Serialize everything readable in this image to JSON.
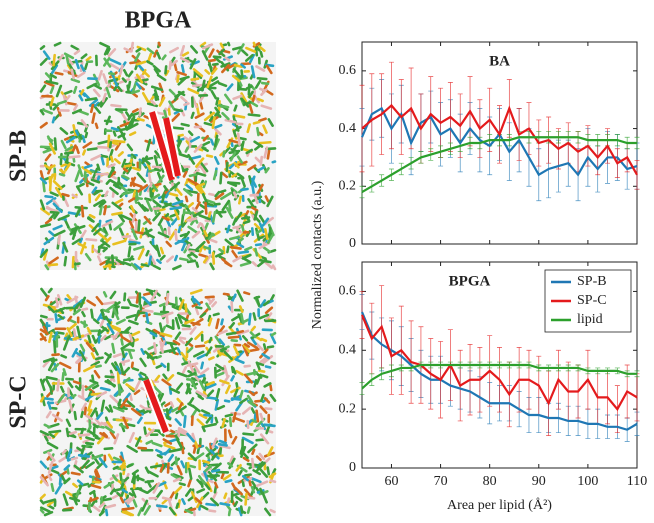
{
  "snapshots": {
    "title": "BPGA",
    "rows": [
      "SP-B",
      "SP-C"
    ]
  },
  "chart_data": [
    {
      "type": "line",
      "title": "BA",
      "x": [
        54,
        56,
        58,
        60,
        62,
        64,
        66,
        68,
        70,
        72,
        74,
        76,
        78,
        80,
        82,
        84,
        86,
        88,
        90,
        92,
        94,
        96,
        98,
        100,
        102,
        104,
        106,
        108,
        110
      ],
      "series": [
        {
          "color": "#1f77b4",
          "values": [
            0.37,
            0.45,
            0.47,
            0.4,
            0.45,
            0.35,
            0.42,
            0.44,
            0.38,
            0.4,
            0.35,
            0.4,
            0.36,
            0.34,
            0.38,
            0.32,
            0.36,
            0.3,
            0.24,
            0.26,
            0.27,
            0.28,
            0.24,
            0.3,
            0.26,
            0.3,
            0.3,
            0.26,
            0.27
          ],
          "errors": [
            0.1,
            0.09,
            0.1,
            0.12,
            0.1,
            0.11,
            0.1,
            0.09,
            0.11,
            0.1,
            0.1,
            0.09,
            0.11,
            0.1,
            0.09,
            0.1,
            0.11,
            0.1,
            0.09,
            0.1,
            0.09,
            0.08,
            0.09,
            0.1,
            0.08,
            0.09,
            0.08,
            0.07,
            0.08
          ]
        },
        {
          "color": "#e41a1c",
          "values": [
            0.4,
            0.43,
            0.45,
            0.48,
            0.44,
            0.47,
            0.4,
            0.45,
            0.42,
            0.44,
            0.41,
            0.46,
            0.4,
            0.43,
            0.38,
            0.47,
            0.38,
            0.4,
            0.35,
            0.36,
            0.33,
            0.35,
            0.32,
            0.34,
            0.3,
            0.34,
            0.28,
            0.3,
            0.24
          ],
          "errors": [
            0.15,
            0.16,
            0.14,
            0.15,
            0.13,
            0.14,
            0.12,
            0.13,
            0.12,
            0.12,
            0.11,
            0.12,
            0.1,
            0.11,
            0.1,
            0.1,
            0.09,
            0.09,
            0.08,
            0.08,
            0.07,
            0.07,
            0.07,
            0.07,
            0.06,
            0.06,
            0.05,
            0.05,
            0.05
          ]
        },
        {
          "color": "#2ca02c",
          "values": [
            0.18,
            0.2,
            0.22,
            0.24,
            0.26,
            0.28,
            0.3,
            0.31,
            0.32,
            0.33,
            0.34,
            0.35,
            0.35,
            0.36,
            0.36,
            0.36,
            0.37,
            0.37,
            0.37,
            0.37,
            0.37,
            0.37,
            0.37,
            0.36,
            0.36,
            0.36,
            0.36,
            0.35,
            0.35
          ],
          "errors": [
            0.02,
            0.02,
            0.02,
            0.02,
            0.02,
            0.02,
            0.02,
            0.02,
            0.02,
            0.02,
            0.02,
            0.02,
            0.02,
            0.02,
            0.02,
            0.02,
            0.02,
            0.02,
            0.02,
            0.02,
            0.02,
            0.02,
            0.02,
            0.02,
            0.02,
            0.02,
            0.02,
            0.02,
            0.02
          ]
        }
      ],
      "xlim": [
        54,
        110
      ],
      "ylim": [
        0,
        0.7
      ],
      "yticks": [
        0,
        0.2,
        0.4,
        0.6
      ]
    },
    {
      "type": "line",
      "title": "BPGA",
      "x_label": "Area per lipid (Å²)",
      "y_label": "Normalized contacts (a.u.)",
      "x": [
        54,
        56,
        58,
        60,
        62,
        64,
        66,
        68,
        70,
        72,
        74,
        76,
        78,
        80,
        82,
        84,
        86,
        88,
        90,
        92,
        94,
        96,
        98,
        100,
        102,
        104,
        106,
        108,
        110
      ],
      "series": [
        {
          "name": "SP-B",
          "color": "#1f77b4",
          "values": [
            0.53,
            0.45,
            0.42,
            0.4,
            0.38,
            0.35,
            0.32,
            0.3,
            0.3,
            0.28,
            0.27,
            0.26,
            0.24,
            0.22,
            0.22,
            0.22,
            0.2,
            0.18,
            0.18,
            0.17,
            0.17,
            0.16,
            0.16,
            0.15,
            0.15,
            0.14,
            0.14,
            0.13,
            0.15
          ],
          "errors": [
            0.06,
            0.08,
            0.09,
            0.1,
            0.1,
            0.09,
            0.08,
            0.08,
            0.08,
            0.07,
            0.07,
            0.07,
            0.07,
            0.07,
            0.06,
            0.06,
            0.06,
            0.06,
            0.06,
            0.05,
            0.05,
            0.05,
            0.05,
            0.05,
            0.05,
            0.04,
            0.04,
            0.04,
            0.04
          ]
        },
        {
          "name": "SP-C",
          "color": "#e41a1c",
          "values": [
            0.52,
            0.44,
            0.48,
            0.38,
            0.4,
            0.36,
            0.35,
            0.32,
            0.3,
            0.35,
            0.28,
            0.3,
            0.3,
            0.33,
            0.3,
            0.25,
            0.3,
            0.3,
            0.28,
            0.22,
            0.3,
            0.26,
            0.26,
            0.3,
            0.24,
            0.24,
            0.2,
            0.26,
            0.24
          ],
          "errors": [
            0.08,
            0.12,
            0.14,
            0.13,
            0.15,
            0.14,
            0.13,
            0.12,
            0.13,
            0.12,
            0.12,
            0.12,
            0.11,
            0.12,
            0.11,
            0.11,
            0.11,
            0.1,
            0.1,
            0.11,
            0.1,
            0.1,
            0.09,
            0.1,
            0.09,
            0.09,
            0.08,
            0.09,
            0.08
          ]
        },
        {
          "name": "lipid",
          "color": "#2ca02c",
          "values": [
            0.27,
            0.3,
            0.32,
            0.33,
            0.34,
            0.34,
            0.35,
            0.35,
            0.35,
            0.35,
            0.35,
            0.35,
            0.35,
            0.35,
            0.35,
            0.35,
            0.35,
            0.35,
            0.34,
            0.34,
            0.34,
            0.34,
            0.34,
            0.33,
            0.33,
            0.33,
            0.33,
            0.32,
            0.32
          ],
          "errors": [
            0.02,
            0.02,
            0.02,
            0.02,
            0.01,
            0.01,
            0.01,
            0.01,
            0.01,
            0.01,
            0.01,
            0.01,
            0.01,
            0.01,
            0.01,
            0.01,
            0.01,
            0.01,
            0.01,
            0.01,
            0.01,
            0.01,
            0.01,
            0.01,
            0.01,
            0.01,
            0.01,
            0.01,
            0.01
          ]
        }
      ],
      "xlim": [
        54,
        110
      ],
      "ylim": [
        0,
        0.7
      ],
      "xticks": [
        60,
        70,
        80,
        90,
        100,
        110
      ],
      "yticks": [
        0,
        0.2,
        0.4,
        0.6
      ],
      "legend": "upper right"
    }
  ]
}
